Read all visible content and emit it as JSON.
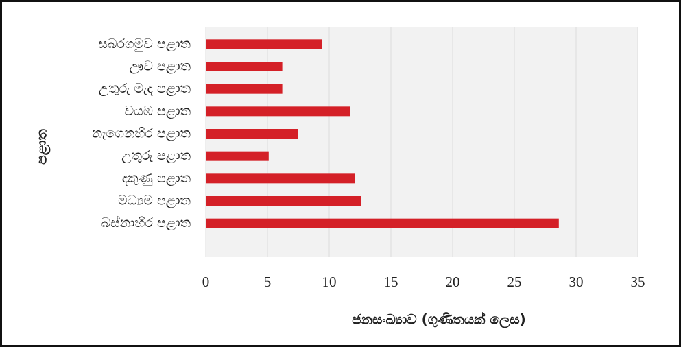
{
  "chart_data": {
    "type": "barh",
    "categories": [
      "සබරගමුව පළාත",
      "ඌව පළාත",
      "උතුරු මැද පළාත",
      "වයඹ පළාත",
      "නැගෙනහිර පළාත",
      "උතුරු පළාත",
      "දකුණු පළාත",
      "මධ්‍යම පළාත",
      "බස්නාහිර පළාත"
    ],
    "values": [
      9.4,
      6.2,
      6.2,
      11.7,
      7.5,
      5.1,
      12.1,
      12.6,
      28.6
    ],
    "color": "#d42027",
    "xlim": [
      0,
      35
    ],
    "xticks": [
      0,
      5,
      10,
      15,
      20,
      25,
      30,
      35
    ],
    "grid": true,
    "xlabel": "ජනසංඛ්‍යාව (ගුණිතයක් ලෙස)",
    "ylabel": "පළාත"
  }
}
